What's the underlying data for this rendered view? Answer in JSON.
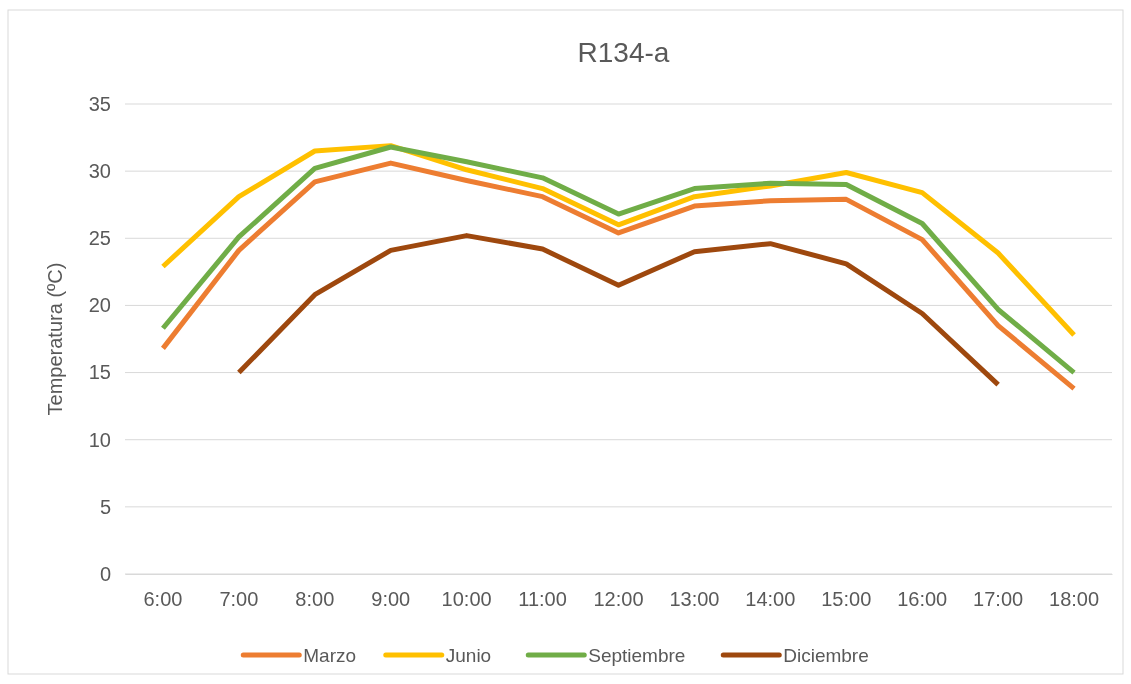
{
  "chart_data": {
    "type": "line",
    "title": "R134-a",
    "ylabel": "Temperatura (ºC)",
    "categories": [
      "6:00",
      "7:00",
      "8:00",
      "9:00",
      "10:00",
      "11:00",
      "12:00",
      "13:00",
      "14:00",
      "15:00",
      "16:00",
      "17:00",
      "18:00"
    ],
    "series": [
      {
        "name": "Marzo",
        "color": "#ed7d31",
        "values": [
          16.8,
          24.1,
          29.2,
          30.6,
          29.3,
          28.1,
          25.4,
          27.4,
          27.8,
          27.9,
          24.9,
          18.5,
          13.8
        ]
      },
      {
        "name": "Junio",
        "color": "#ffc000",
        "values": [
          22.9,
          28.1,
          31.5,
          31.9,
          30.1,
          28.7,
          26.0,
          28.1,
          28.9,
          29.9,
          28.4,
          23.9,
          17.8
        ]
      },
      {
        "name": "Septiembre",
        "color": "#70ad47",
        "values": [
          18.3,
          25.1,
          30.2,
          31.8,
          30.7,
          29.5,
          26.8,
          28.7,
          29.1,
          29.0,
          26.1,
          19.7,
          15.0
        ]
      },
      {
        "name": "Diciembre",
        "color": "#9e480e",
        "values": [
          null,
          15.0,
          20.8,
          24.1,
          25.2,
          24.2,
          21.5,
          24.0,
          24.6,
          23.1,
          19.4,
          14.1,
          null
        ]
      }
    ],
    "ylim": [
      0,
      35
    ],
    "yticks": [
      0,
      5,
      10,
      15,
      20,
      25,
      30,
      35
    ],
    "grid": "y",
    "legend": "bottom",
    "marker": "none",
    "line_style": "solid"
  }
}
